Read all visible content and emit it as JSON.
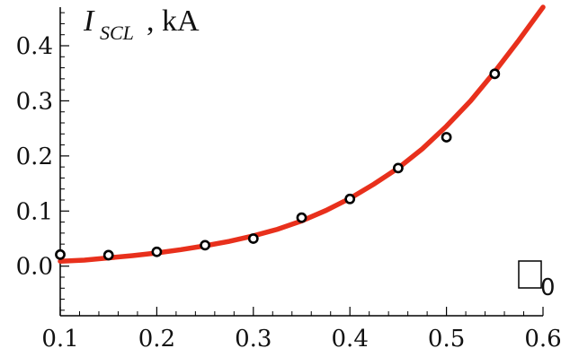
{
  "chart_data": {
    "type": "scatter",
    "ylabel": {
      "symbol": "I",
      "subscript": "SCL",
      "unit": ", kA"
    },
    "xlabel": {
      "symbol": "□",
      "subscript": "0"
    },
    "xlim": [
      0.1,
      0.6
    ],
    "ylim": [
      -0.09,
      0.47
    ],
    "x_ticks": [
      0.1,
      0.2,
      0.3,
      0.4,
      0.5,
      0.6
    ],
    "x_tick_labels": [
      "0.1",
      "0.2",
      "0.3",
      "0.4",
      "0.5",
      "0.6"
    ],
    "y_ticks": [
      0.0,
      0.1,
      0.2,
      0.3,
      0.4
    ],
    "y_tick_labels": [
      "0.0",
      "0.1",
      "0.2",
      "0.3",
      "0.4"
    ],
    "grid": false,
    "series": [
      {
        "kind": "points",
        "x": [
          0.1,
          0.15,
          0.2,
          0.25,
          0.3,
          0.35,
          0.4,
          0.45,
          0.5,
          0.55
        ],
        "y": [
          0.021,
          0.02,
          0.026,
          0.038,
          0.05,
          0.088,
          0.122,
          0.178,
          0.234,
          0.349
        ]
      },
      {
        "kind": "line",
        "color": "#e8301c",
        "x": [
          0.1,
          0.125,
          0.15,
          0.175,
          0.2,
          0.225,
          0.25,
          0.275,
          0.3,
          0.325,
          0.35,
          0.375,
          0.4,
          0.425,
          0.45,
          0.475,
          0.5,
          0.525,
          0.55,
          0.575,
          0.6
        ],
        "y": [
          0.009,
          0.011,
          0.015,
          0.019,
          0.024,
          0.03,
          0.037,
          0.045,
          0.055,
          0.067,
          0.082,
          0.101,
          0.123,
          0.149,
          0.178,
          0.213,
          0.254,
          0.3,
          0.353,
          0.41,
          0.47
        ]
      }
    ]
  }
}
